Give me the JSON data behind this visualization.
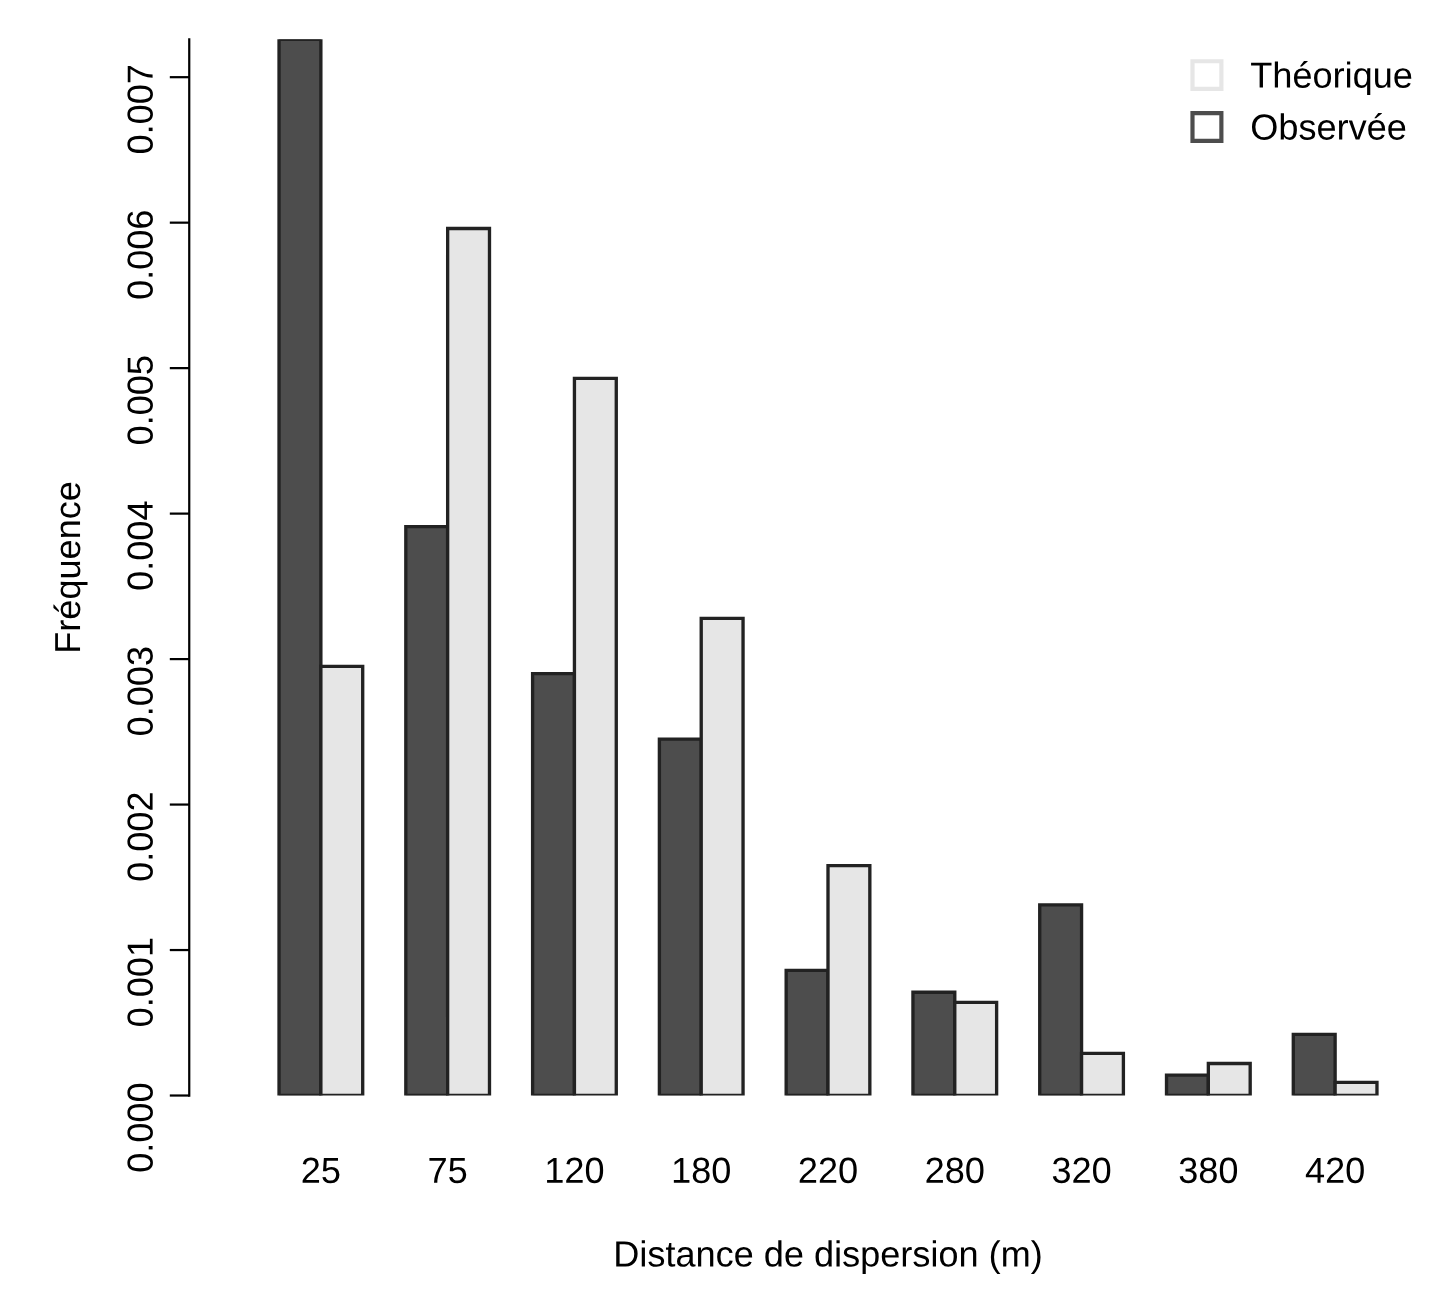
{
  "chart_data": {
    "type": "bar",
    "xlabel": "Distance de dispersion (m)",
    "ylabel": "Fréquence",
    "categories": [
      "25",
      "75",
      "120",
      "180",
      "220",
      "280",
      "320",
      "380",
      "420"
    ],
    "series": [
      {
        "name": "Observée",
        "color": "#4d4d4d",
        "values": [
          0.00726,
          0.00391,
          0.0029,
          0.00245,
          0.00086,
          0.00071,
          0.00131,
          0.00014,
          0.00042
        ]
      },
      {
        "name": "Théorique",
        "color": "#e6e6e6",
        "values": [
          0.00295,
          0.00596,
          0.00493,
          0.00328,
          0.00158,
          0.00064,
          0.00029,
          0.00022,
          9e-05
        ]
      }
    ],
    "ylim": [
      0,
      0.00726
    ],
    "yticks": [
      {
        "value": 0,
        "label": "0.000"
      },
      {
        "value": 0.001,
        "label": "0.001"
      },
      {
        "value": 0.002,
        "label": "0.002"
      },
      {
        "value": 0.003,
        "label": "0.003"
      },
      {
        "value": 0.004,
        "label": "0.004"
      },
      {
        "value": 0.005,
        "label": "0.005"
      },
      {
        "value": 0.006,
        "label": "0.006"
      },
      {
        "value": 0.007,
        "label": "0.007"
      }
    ],
    "grid": false,
    "legend": "top right"
  }
}
